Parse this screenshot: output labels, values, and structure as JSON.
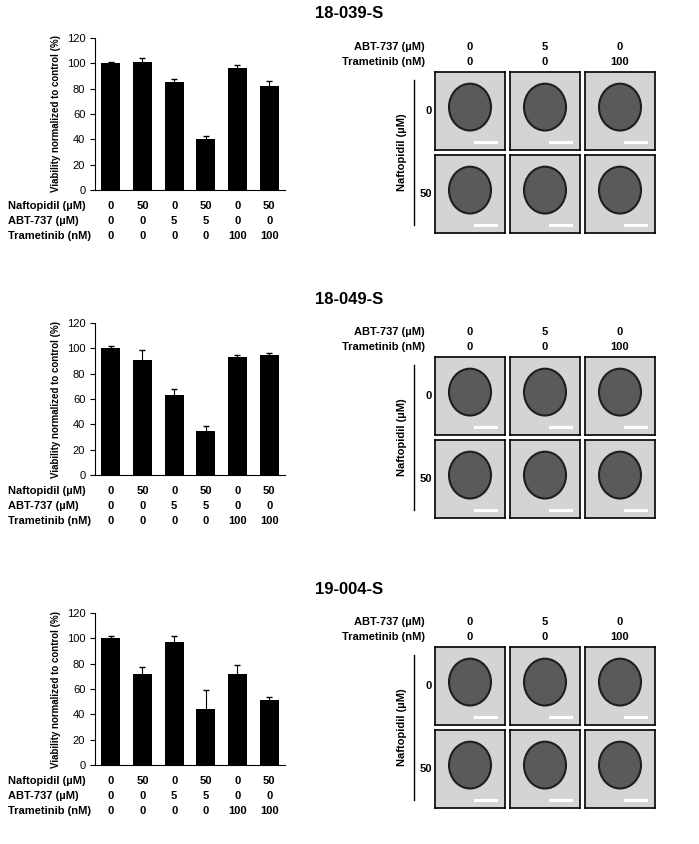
{
  "chart_data": [
    {
      "type": "bar",
      "title": "18-039-S",
      "ylabel": "Viability normalized to control (%)",
      "categories": [
        null,
        null,
        null,
        null,
        null,
        null
      ],
      "values": [
        100,
        101,
        85,
        40,
        96,
        82
      ],
      "errors": [
        1,
        3,
        3,
        3,
        3,
        4
      ],
      "color": "#000000",
      "ylim": [
        0,
        120
      ],
      "yticks": [
        0,
        20,
        40,
        60,
        80,
        100,
        120
      ],
      "conditions": [
        {
          "label": "Naftopidil (µM)",
          "values": [
            0,
            50,
            0,
            50,
            0,
            50
          ]
        },
        {
          "label": "ABT-737 (µM)",
          "values": [
            0,
            0,
            5,
            5,
            0,
            0
          ]
        },
        {
          "label": "Trametinib (nM)",
          "values": [
            0,
            0,
            0,
            0,
            100,
            100
          ]
        }
      ],
      "image_panel": {
        "columns": [
          {
            "label": "ABT-737 (µM)",
            "values": [
              0,
              5,
              0
            ]
          },
          {
            "label": "Trametinib (nM)",
            "values": [
              0,
              0,
              100
            ]
          }
        ],
        "rows": {
          "label": "Naftopidil (µM)",
          "values": [
            0,
            50
          ]
        }
      }
    },
    {
      "type": "bar",
      "title": "18-049-S",
      "ylabel": "Viability normalized to control (%)",
      "categories": [
        null,
        null,
        null,
        null,
        null,
        null
      ],
      "values": [
        100,
        91,
        63,
        35,
        93,
        95
      ],
      "errors": [
        2,
        8,
        5,
        4,
        2,
        1
      ],
      "color": "#000000",
      "ylim": [
        0,
        120
      ],
      "yticks": [
        0,
        20,
        40,
        60,
        80,
        100,
        120
      ],
      "conditions": [
        {
          "label": "Naftopidil (µM)",
          "values": [
            0,
            50,
            0,
            50,
            0,
            50
          ]
        },
        {
          "label": "ABT-737 (µM)",
          "values": [
            0,
            0,
            5,
            5,
            0,
            0
          ]
        },
        {
          "label": "Trametinib (nM)",
          "values": [
            0,
            0,
            0,
            0,
            100,
            100
          ]
        }
      ],
      "image_panel": {
        "columns": [
          {
            "label": "ABT-737 (µM)",
            "values": [
              0,
              5,
              0
            ]
          },
          {
            "label": "Trametinib (nM)",
            "values": [
              0,
              0,
              100
            ]
          }
        ],
        "rows": {
          "label": "Naftopidil (µM)",
          "values": [
            0,
            50
          ]
        }
      }
    },
    {
      "type": "bar",
      "title": "19-004-S",
      "ylabel": "Viability normalized to control (%)",
      "categories": [
        null,
        null,
        null,
        null,
        null,
        null
      ],
      "values": [
        100,
        72,
        97,
        44,
        72,
        51
      ],
      "errors": [
        2,
        5,
        5,
        15,
        7,
        3
      ],
      "color": "#000000",
      "ylim": [
        0,
        120
      ],
      "yticks": [
        0,
        20,
        40,
        60,
        80,
        100,
        120
      ],
      "conditions": [
        {
          "label": "Naftopidil (µM)",
          "values": [
            0,
            50,
            0,
            50,
            0,
            50
          ]
        },
        {
          "label": "ABT-737 (µM)",
          "values": [
            0,
            0,
            5,
            5,
            0,
            0
          ]
        },
        {
          "label": "Trametinib (nM)",
          "values": [
            0,
            0,
            0,
            0,
            100,
            100
          ]
        }
      ],
      "image_panel": {
        "columns": [
          {
            "label": "ABT-737 (µM)",
            "values": [
              0,
              5,
              0
            ]
          },
          {
            "label": "Trametinib (nM)",
            "values": [
              0,
              0,
              100
            ]
          }
        ],
        "rows": {
          "label": "Naftopidil (µM)",
          "values": [
            0,
            50
          ]
        }
      }
    }
  ]
}
